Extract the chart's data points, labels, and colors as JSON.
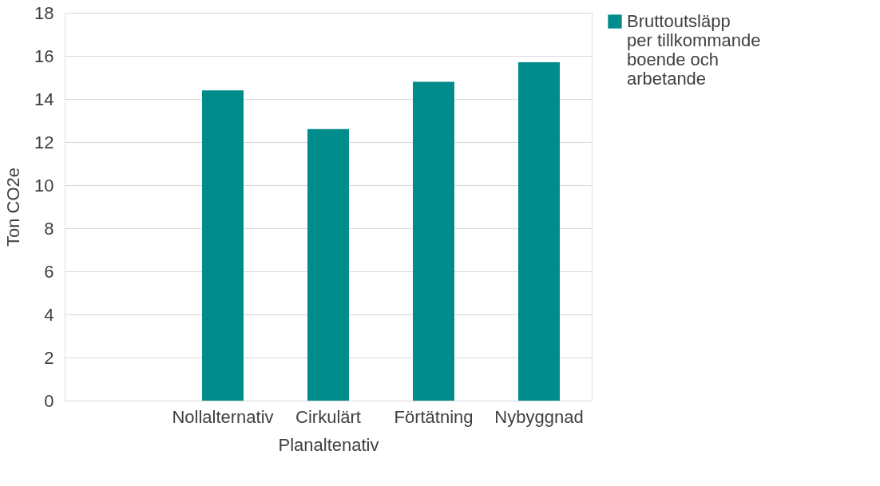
{
  "chart_data": {
    "type": "bar",
    "xlabel": "Planaltenativ",
    "ylabel": "Ton CO2e",
    "categories": [
      null,
      "Nollalternativ",
      "Cirkulärt",
      "Förtätning",
      "Nybyggnad"
    ],
    "series": [
      {
        "name": "Bruttoutsläpp per tillkommande boende och arbetande",
        "color": "#008c8a",
        "values": [
          null,
          14.4,
          12.6,
          14.8,
          15.7
        ]
      }
    ],
    "ylim": [
      0,
      18
    ],
    "yticks": [
      0,
      2,
      4,
      6,
      8,
      10,
      12,
      14,
      16,
      18
    ],
    "grid": "y",
    "legend": "right"
  }
}
